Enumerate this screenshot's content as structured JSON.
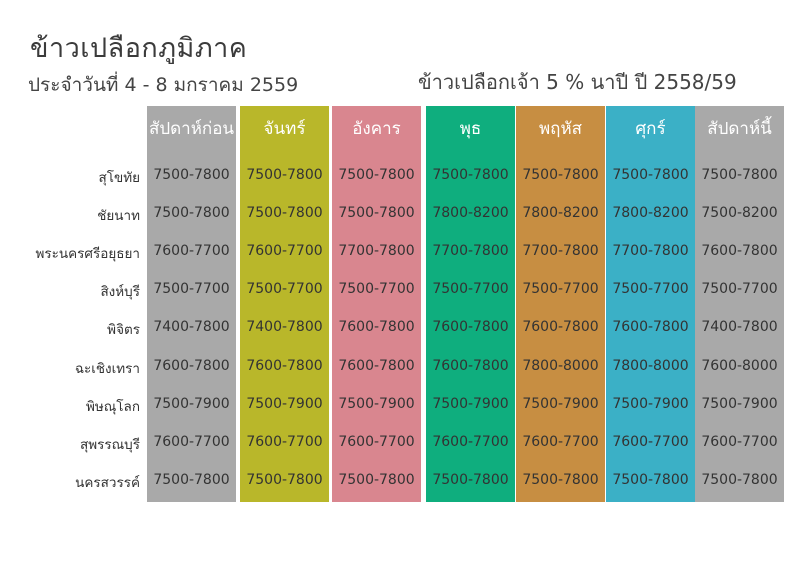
{
  "title": "ข้าวเปลือกภูมิภาค",
  "subtitle": "ประจำวันที่ 4 - 8 มกราคม 2559",
  "subtitle_right": "ข้าวเปลือกเจ้า 5 %  นาปี ปี 2558/59",
  "columns": [
    {
      "label": "สัปดาห์ก่อน",
      "color": "#a9a9a9"
    },
    {
      "label": "จันทร์",
      "color": "#b9b72a"
    },
    {
      "label": "อังคาร",
      "color": "#d9868f"
    },
    {
      "label": "พุธ",
      "color": "#0fae7e"
    },
    {
      "label": "พฤหัส",
      "color": "#c78e42"
    },
    {
      "label": "ศุกร์",
      "color": "#3bb0c6"
    },
    {
      "label": "สัปดาห์นี้",
      "color": "#a9a9a9"
    }
  ],
  "rows": [
    {
      "label": "สุโขทัย",
      "values": [
        "7500-7800",
        "7500-7800",
        "7500-7800",
        "7500-7800",
        "7500-7800",
        "7500-7800",
        "7500-7800"
      ]
    },
    {
      "label": "ชัยนาท",
      "values": [
        "7500-7800",
        "7500-7800",
        "7500-7800",
        "7800-8200",
        "7800-8200",
        "7800-8200",
        "7500-8200"
      ]
    },
    {
      "label": "พระนครศรีอยุธยา",
      "values": [
        "7600-7700",
        "7600-7700",
        "7700-7800",
        "7700-7800",
        "7700-7800",
        "7700-7800",
        "7600-7800"
      ]
    },
    {
      "label": "สิงห์บุรี",
      "values": [
        "7500-7700",
        "7500-7700",
        "7500-7700",
        "7500-7700",
        "7500-7700",
        "7500-7700",
        "7500-7700"
      ]
    },
    {
      "label": "พิจิตร",
      "values": [
        "7400-7800",
        "7400-7800",
        "7600-7800",
        "7600-7800",
        "7600-7800",
        "7600-7800",
        "7400-7800"
      ]
    },
    {
      "label": "ฉะเชิงเทรา",
      "values": [
        "7600-7800",
        "7600-7800",
        "7600-7800",
        "7600-7800",
        "7800-8000",
        "7800-8000",
        "7600-8000"
      ]
    },
    {
      "label": "พิษณุโลก",
      "values": [
        "7500-7900",
        "7500-7900",
        "7500-7900",
        "7500-7900",
        "7500-7900",
        "7500-7900",
        "7500-7900"
      ]
    },
    {
      "label": "สุพรรณบุรี",
      "values": [
        "7600-7700",
        "7600-7700",
        "7600-7700",
        "7600-7700",
        "7600-7700",
        "7600-7700",
        "7600-7700"
      ]
    },
    {
      "label": "นครสวรรค์",
      "values": [
        "7500-7800",
        "7500-7800",
        "7500-7800",
        "7500-7800",
        "7500-7800",
        "7500-7800",
        "7500-7800"
      ]
    }
  ]
}
